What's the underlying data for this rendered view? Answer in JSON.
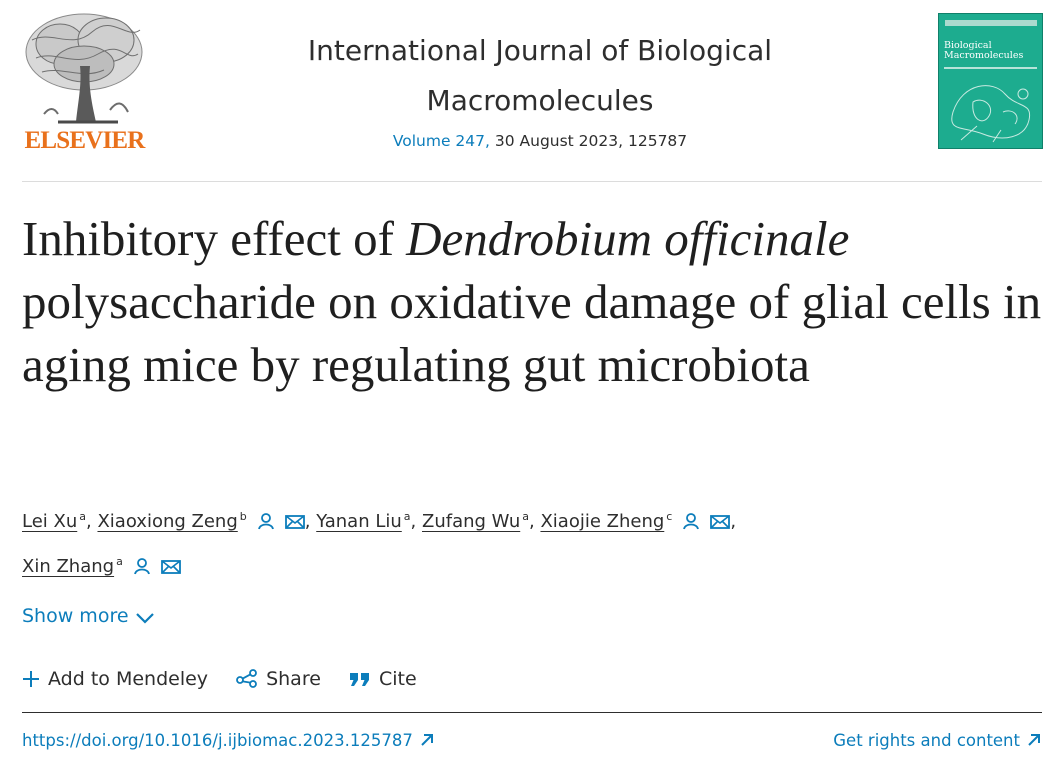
{
  "publisher": {
    "name": "ELSEVIER"
  },
  "journal": {
    "name": "International Journal of Biological Macromolecules",
    "volume_link": "Volume 247,",
    "issue_details": " 30 August 2023, 125787"
  },
  "cover": {
    "title_line_1": "Biological",
    "title_line_2": "Macromolecules",
    "accent_color": "#1dac8f"
  },
  "article": {
    "title_part_1": "Inhibitory effect of ",
    "title_italic": "Dendrobium officinale",
    "title_part_2": " polysaccharide on oxidative damage of glial cells in aging mice by regulating gut microbiota"
  },
  "authors": [
    {
      "name": "Lei Xu",
      "affiliation": "a"
    },
    {
      "name": "Xiaoxiong Zeng",
      "affiliation": "b"
    },
    {
      "name": "Yanan Liu",
      "affiliation": "a"
    },
    {
      "name": "Zufang Wu",
      "affiliation": "a"
    },
    {
      "name": "Xiaojie Zheng",
      "affiliation": "c"
    },
    {
      "name": "Xin Zhang",
      "affiliation": "a"
    }
  ],
  "separator": ",",
  "show_more": "Show more",
  "actions": {
    "mendeley": "Add to Mendeley",
    "share": "Share",
    "cite": "Cite"
  },
  "links": {
    "doi": "https://doi.org/10.1016/j.ijbiomac.2023.125787",
    "rights": "Get rights and content"
  },
  "colors": {
    "link": "#0c7dbb",
    "brand": "#e9711c",
    "text": "#2e2e2e"
  },
  "icons": {
    "author_profile": "person-icon",
    "author_email": "envelope-icon",
    "show_more": "chevron-down-icon",
    "mendeley": "plus-icon",
    "share": "share-icon",
    "cite": "quote-icon",
    "external": "arrow-up-right-icon"
  }
}
